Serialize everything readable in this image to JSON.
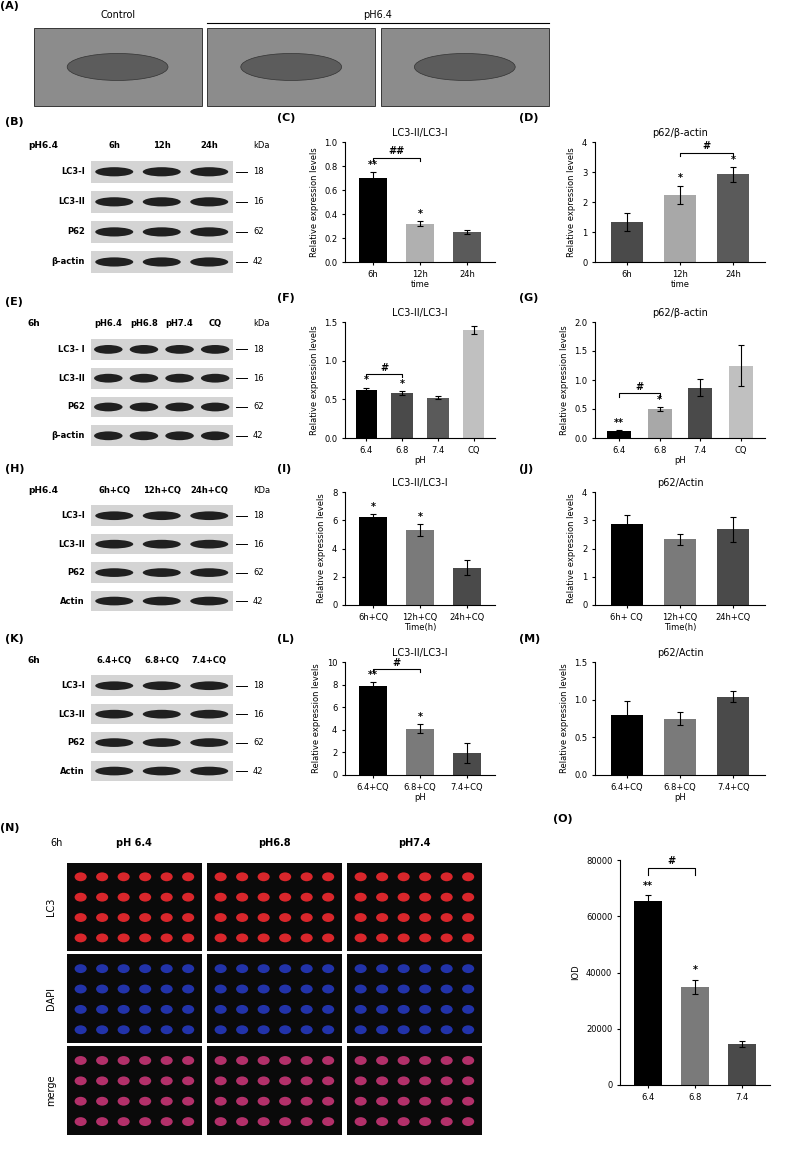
{
  "chart_data": [
    {
      "type": "bar",
      "panel": "(C)",
      "title": "LC3-II/LC3-I",
      "y_label": "Relative expression levels",
      "x_label": "time",
      "categories": [
        "6h",
        "12h",
        "24h"
      ],
      "values": [
        0.7,
        0.32,
        0.25
      ],
      "errors": [
        0.05,
        0.02,
        0.02
      ],
      "colors": [
        "#000000",
        "#b0b0b0",
        "#5a5a5a"
      ],
      "ylim": [
        0,
        1.0
      ],
      "yticks": [
        {
          "value": 0,
          "label": "0.0"
        },
        0.2,
        0.4,
        0.6,
        0.8,
        {
          "value": 1.0,
          "label": "1.0"
        }
      ],
      "significance": [
        "**",
        "*",
        null
      ],
      "bracket": {
        "from": "6h",
        "to": "12h",
        "text": "##"
      }
    },
    {
      "type": "bar",
      "panel": "(D)",
      "title": "p62/β-actin",
      "y_label": "Relative expression levels",
      "x_label": "time",
      "categories": [
        "6h",
        "12h",
        "24h"
      ],
      "values": [
        1.35,
        2.25,
        2.92
      ],
      "errors": [
        0.3,
        0.3,
        0.25
      ],
      "colors": [
        "#4a4a4a",
        "#a8a8a8",
        "#5a5a5a"
      ],
      "ylim": [
        0,
        4
      ],
      "yticks": [
        0,
        1,
        2,
        3,
        4
      ],
      "significance": [
        null,
        "*",
        "*"
      ],
      "bracket": {
        "from": "12h",
        "to": "24h",
        "text": "#"
      }
    },
    {
      "type": "bar",
      "panel": "(F)",
      "title": "LC3-II/LC3-I",
      "y_label": "Relative expression levels",
      "x_label": "pH",
      "categories": [
        "6.4",
        "6.8",
        "7.4",
        "CQ"
      ],
      "values": [
        0.62,
        0.58,
        0.52,
        1.4
      ],
      "errors": [
        0.03,
        0.03,
        0.02,
        0.05
      ],
      "colors": [
        "#000000",
        "#4a4a4a",
        "#5a5a5a",
        "#c0c0c0"
      ],
      "ylim": [
        0,
        1.5
      ],
      "yticks": [
        {
          "value": 0,
          "label": "0.0"
        },
        0.5,
        {
          "value": 1.0,
          "label": "1.0"
        },
        1.5
      ],
      "significance": [
        "*",
        "*",
        null,
        null
      ],
      "bracket": {
        "from": "6.4",
        "to": "6.8",
        "text": "#"
      }
    },
    {
      "type": "bar",
      "panel": "(G)",
      "title": "p62/β-actin",
      "y_label": "Relative expression levels",
      "x_label": "pH",
      "categories": [
        "6.4",
        "6.8",
        "7.4",
        "CQ"
      ],
      "values": [
        0.12,
        0.5,
        0.87,
        1.25
      ],
      "errors": [
        0.02,
        0.03,
        0.15,
        0.35
      ],
      "colors": [
        "#000000",
        "#a8a8a8",
        "#4a4a4a",
        "#c0c0c0"
      ],
      "ylim": [
        0,
        2.0
      ],
      "yticks": [
        {
          "value": 0,
          "label": "0.0"
        },
        0.5,
        {
          "value": 1.0,
          "label": "1.0"
        },
        1.5,
        {
          "value": 2.0,
          "label": "2.0"
        }
      ],
      "significance": [
        "**",
        "*",
        null,
        null
      ],
      "bracket": {
        "from": "6.4",
        "to": "6.8",
        "text": "#"
      }
    },
    {
      "type": "bar",
      "panel": "(I)",
      "title": "LC3-II/LC3-I",
      "y_label": "Relative expression levels",
      "x_label": "Time(h)",
      "categories": [
        "6h+CQ",
        "12h+CQ",
        "24h+CQ"
      ],
      "values": [
        6.2,
        5.3,
        2.65
      ],
      "errors": [
        0.25,
        0.45,
        0.55
      ],
      "colors": [
        "#000000",
        "#7a7a7a",
        "#4a4a4a"
      ],
      "ylim": [
        0,
        8
      ],
      "yticks": [
        0,
        2,
        4,
        6,
        8
      ],
      "significance": [
        "*",
        "*",
        null
      ]
    },
    {
      "type": "bar",
      "panel": "(J)",
      "title": "p62/Actin",
      "y_label": "Relative expression levels",
      "x_label": "Time(h)",
      "categories": [
        "6h+ CQ",
        "12h+CQ",
        "24h+CQ"
      ],
      "values": [
        2.85,
        2.32,
        2.68
      ],
      "errors": [
        0.35,
        0.2,
        0.45
      ],
      "colors": [
        "#000000",
        "#7a7a7a",
        "#4a4a4a"
      ],
      "ylim": [
        0,
        4
      ],
      "yticks": [
        0,
        1,
        2,
        3,
        4
      ],
      "significance": [
        null,
        null,
        null
      ]
    },
    {
      "type": "bar",
      "panel": "(L)",
      "title": "LC3-II/LC3-I",
      "y_label": "Relative expression levels",
      "x_label": "pH",
      "categories": [
        "6.4+CQ",
        "6.8+CQ",
        "7.4+CQ"
      ],
      "values": [
        7.9,
        4.1,
        1.95
      ],
      "errors": [
        0.3,
        0.4,
        0.85
      ],
      "colors": [
        "#000000",
        "#7a7a7a",
        "#4a4a4a"
      ],
      "ylim": [
        0,
        10
      ],
      "yticks": [
        0,
        2,
        4,
        6,
        8,
        10
      ],
      "significance": [
        "**",
        "*",
        null
      ],
      "bracket": {
        "from": "6.4+CQ",
        "to": "6.8+CQ",
        "text": "#"
      }
    },
    {
      "type": "bar",
      "panel": "(M)",
      "title": "p62/Actin",
      "y_label": "Relative expression levels",
      "x_label": "pH",
      "categories": [
        "6.4+CQ",
        "6.8+CQ",
        "7.4+CQ"
      ],
      "values": [
        0.8,
        0.75,
        1.04
      ],
      "errors": [
        0.18,
        0.08,
        0.07
      ],
      "colors": [
        "#000000",
        "#7a7a7a",
        "#4a4a4a"
      ],
      "ylim": [
        0,
        1.5
      ],
      "yticks": [
        {
          "value": 0,
          "label": "0.0"
        },
        0.5,
        {
          "value": 1.0,
          "label": "1.0"
        },
        1.5
      ],
      "significance": [
        null,
        null,
        null
      ]
    },
    {
      "type": "bar",
      "panel": "(O)",
      "y_label": "IOD",
      "categories": [
        "6.4",
        "6.8",
        "7.4"
      ],
      "values": [
        65500,
        35000,
        14500
      ],
      "errors": [
        2000,
        2500,
        1000
      ],
      "colors": [
        "#000000",
        "#7a7a7a",
        "#4a4a4a"
      ],
      "ylim": [
        0,
        80000
      ],
      "yticks": [
        0,
        20000,
        40000,
        60000,
        80000
      ],
      "significance": [
        "**",
        "*",
        null
      ],
      "bracket": {
        "from": "6.4",
        "to": "6.8",
        "text": "#"
      }
    }
  ],
  "em_images": {
    "panel": "(A)",
    "groups": [
      {
        "label": "Control",
        "images": 1
      },
      {
        "label": "pH6.4",
        "images": 2
      }
    ]
  },
  "blots": [
    {
      "panel": "(B)",
      "header": "pH6.4",
      "lanes": [
        "6h",
        "12h",
        "24h"
      ],
      "unit": "kDa",
      "rows": [
        {
          "name": "LC3-I",
          "kda": "18"
        },
        {
          "name": "LC3-II",
          "kda": "16"
        },
        {
          "name": "P62",
          "kda": "62"
        },
        {
          "name": "β-actin",
          "kda": "42"
        }
      ]
    },
    {
      "panel": "(E)",
      "header": "6h",
      "lanes": [
        "pH6.4",
        "pH6.8",
        "pH7.4",
        "CQ"
      ],
      "unit": "kDa",
      "rows": [
        {
          "name": "LC3- I",
          "kda": "18"
        },
        {
          "name": "LC3-II",
          "kda": "16"
        },
        {
          "name": "P62",
          "kda": "62"
        },
        {
          "name": "β-actin",
          "kda": "42"
        }
      ]
    },
    {
      "panel": "(H)",
      "header": "pH6.4",
      "lanes": [
        "6h+CQ",
        "12h+CQ",
        "24h+CQ"
      ],
      "unit": "KDa",
      "rows": [
        {
          "name": "LC3-I",
          "kda": "18"
        },
        {
          "name": "LC3-II",
          "kda": "16"
        },
        {
          "name": "P62",
          "kda": "62"
        },
        {
          "name": "Actin",
          "kda": "42"
        }
      ]
    },
    {
      "panel": "(K)",
      "header": "6h",
      "lanes": [
        "6.4+CQ",
        "6.8+CQ",
        "7.4+CQ"
      ],
      "rows": [
        {
          "name": "LC3-I",
          "kda": "18"
        },
        {
          "name": "LC3-II",
          "kda": "16"
        },
        {
          "name": "P62",
          "kda": "62"
        },
        {
          "name": "Actin",
          "kda": "42"
        }
      ]
    }
  ],
  "fluorescence": {
    "panel": "(N)",
    "header": "6h",
    "columns": [
      "pH 6.4",
      "pH6.8",
      "pH7.4"
    ],
    "rows": [
      {
        "name": "LC3",
        "color": "#d9262b"
      },
      {
        "name": "DAPI",
        "color": "#2233aa"
      },
      {
        "name": "merge",
        "color": "#b3306a"
      }
    ]
  }
}
